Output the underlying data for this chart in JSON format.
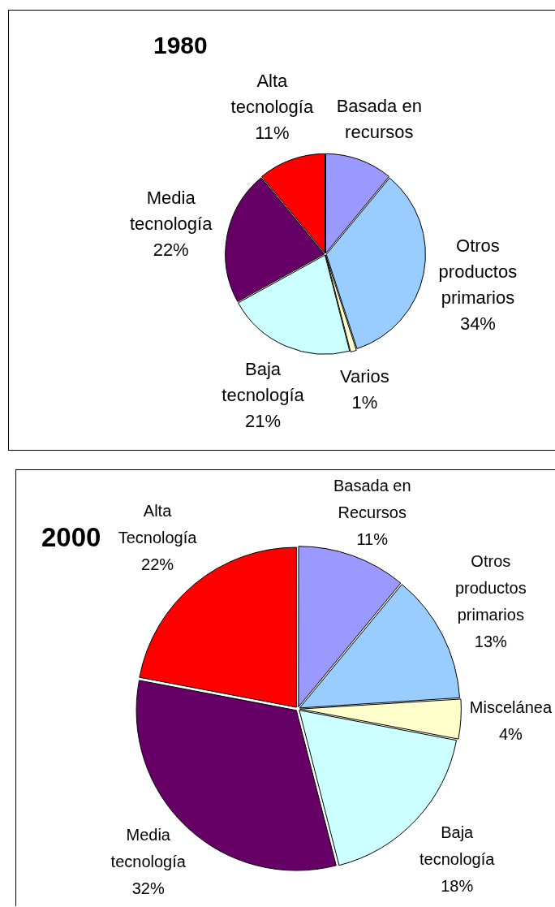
{
  "chart_data": [
    {
      "type": "pie",
      "title": "1980",
      "categories": [
        "Basada en recursos",
        "Otros productos primarios",
        "Varios",
        "Baja tecnología",
        "Media tecnología",
        "Alta tecnología"
      ],
      "values": [
        11,
        34,
        1,
        21,
        22,
        11
      ],
      "colors": [
        "#9999ff",
        "#99ccff",
        "#ffffcc",
        "#ccffff",
        "#660066",
        "#ff0000"
      ],
      "value_labels": [
        null,
        "34%",
        "1%",
        "21%",
        "22%",
        "11%"
      ]
    },
    {
      "type": "pie",
      "title": "2000",
      "categories": [
        "Basada en Recursos",
        "Otros productos primarios",
        "Miscelánea",
        "Baja tecnología",
        "Media tecnología",
        "Alta Tecnología"
      ],
      "values": [
        11,
        13,
        4,
        18,
        32,
        22
      ],
      "colors": [
        "#9999ff",
        "#99ccff",
        "#ffffcc",
        "#ccffff",
        "#660066",
        "#ff0000"
      ],
      "value_labels": [
        "11%",
        "13%",
        "4%",
        "18%",
        "32%",
        "22%"
      ]
    }
  ]
}
